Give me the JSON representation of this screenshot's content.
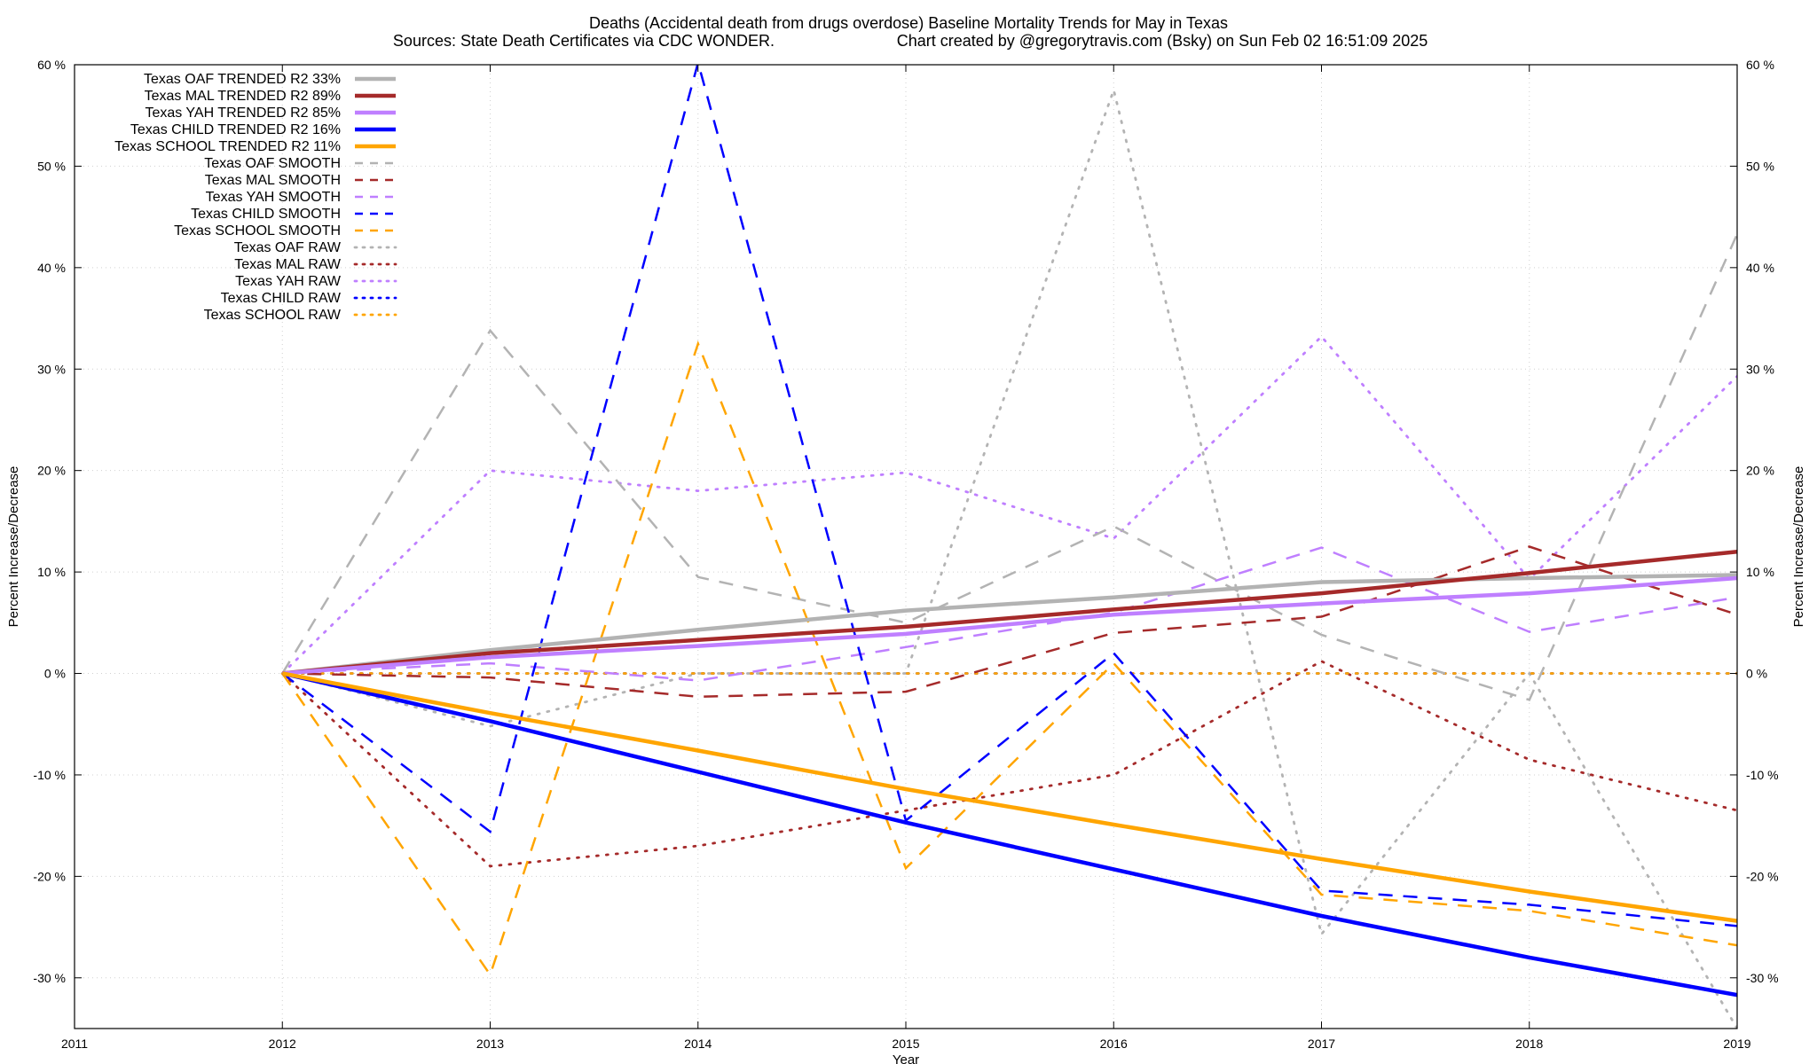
{
  "chart_data": {
    "type": "line",
    "title_line1": "Deaths (Accidental death from drugs overdose)  Baseline Mortality Trends for May in Texas",
    "title_line2_left": "Sources: State Death Certificates via CDC WONDER.",
    "title_line2_right": "Chart created by @gregorytravis.com (Bsky) on Sun Feb 02 16:51:09 2025",
    "xlabel": "Year",
    "ylabel_left": "Percent Increase/Decrease",
    "ylabel_right": "Percent Increase/Decrease",
    "xlim": [
      2011,
      2019
    ],
    "ylim": [
      -35,
      60
    ],
    "x_ticks": [
      2011,
      2012,
      2013,
      2014,
      2015,
      2016,
      2017,
      2018,
      2019
    ],
    "x_tick_labels": [
      "2011",
      "2012",
      "2013",
      "2014",
      "2015",
      "2016",
      "2017",
      "2018",
      "2019"
    ],
    "y_ticks": [
      -30,
      -20,
      -10,
      0,
      10,
      20,
      30,
      40,
      50,
      60
    ],
    "y_tick_labels": [
      "-30 %",
      "-20 %",
      "-10 %",
      "0 %",
      "10 %",
      "20 %",
      "30 %",
      "40 %",
      "50 %",
      "60 %"
    ],
    "grid": true,
    "legend_position": "top-left",
    "colors": {
      "oaf": "#b3b3b3",
      "mal": "#a52a2a",
      "yah": "#bf7fff",
      "child": "#0000ff",
      "school": "#ffa500"
    },
    "series": [
      {
        "name": "Texas OAF TRENDED R2  33%",
        "group": "oaf",
        "style": "solid",
        "x": [
          2012,
          2013,
          2014,
          2015,
          2016,
          2017,
          2018,
          2019
        ],
        "values": [
          0,
          2.3,
          4.3,
          6.2,
          7.5,
          9.0,
          9.4,
          9.7
        ]
      },
      {
        "name": "Texas MAL TRENDED R2  89%",
        "group": "mal",
        "style": "solid",
        "x": [
          2012,
          2013,
          2014,
          2015,
          2016,
          2017,
          2018,
          2019
        ],
        "values": [
          0,
          2.0,
          3.3,
          4.6,
          6.3,
          7.9,
          9.9,
          12.0
        ]
      },
      {
        "name": "Texas YAH TRENDED R2  85%",
        "group": "yah",
        "style": "solid",
        "x": [
          2012,
          2013,
          2014,
          2015,
          2016,
          2017,
          2018,
          2019
        ],
        "values": [
          0,
          1.6,
          2.7,
          3.9,
          5.8,
          6.9,
          7.9,
          9.4
        ]
      },
      {
        "name": "Texas CHILD TRENDED R2  16%",
        "group": "child",
        "style": "solid",
        "x": [
          2012,
          2013,
          2014,
          2015,
          2016,
          2017,
          2018,
          2019
        ],
        "values": [
          0,
          -4.7,
          -9.7,
          -14.7,
          -19.3,
          -23.9,
          -28.0,
          -31.7
        ]
      },
      {
        "name": "Texas SCHOOL TRENDED R2  11%",
        "group": "school",
        "style": "solid",
        "x": [
          2012,
          2013,
          2014,
          2015,
          2016,
          2017,
          2018,
          2019
        ],
        "values": [
          0,
          -3.9,
          -7.6,
          -11.4,
          -14.9,
          -18.3,
          -21.5,
          -24.4
        ]
      },
      {
        "name": "Texas OAF SMOOTH",
        "group": "oaf",
        "style": "dashed",
        "x": [
          2012,
          2013,
          2014,
          2015,
          2016,
          2017,
          2018,
          2019
        ],
        "values": [
          0,
          33.8,
          9.5,
          5.0,
          14.5,
          3.8,
          -2.6,
          43.3
        ]
      },
      {
        "name": "Texas MAL SMOOTH",
        "group": "mal",
        "style": "dashed",
        "x": [
          2012,
          2013,
          2014,
          2015,
          2016,
          2017,
          2018,
          2019
        ],
        "values": [
          0,
          -0.4,
          -2.3,
          -1.8,
          4.0,
          5.6,
          12.5,
          5.8
        ]
      },
      {
        "name": "Texas YAH SMOOTH",
        "group": "yah",
        "style": "dashed",
        "x": [
          2012,
          2013,
          2014,
          2015,
          2016,
          2017,
          2018,
          2019
        ],
        "values": [
          0,
          1.0,
          -0.7,
          2.6,
          6.0,
          12.4,
          4.1,
          7.5
        ]
      },
      {
        "name": "Texas CHILD SMOOTH",
        "group": "child",
        "style": "dashed",
        "x": [
          2012,
          2013,
          2014,
          2015,
          2016,
          2017,
          2018,
          2019
        ],
        "values": [
          0,
          -15.6,
          60.2,
          -14.5,
          2.0,
          -21.4,
          -22.8,
          -24.9
        ]
      },
      {
        "name": "Texas SCHOOL SMOOTH",
        "group": "school",
        "style": "dashed",
        "x": [
          2012,
          2013,
          2014,
          2015,
          2016,
          2017,
          2018,
          2019
        ],
        "values": [
          0,
          -29.7,
          32.5,
          -19.2,
          1.0,
          -21.8,
          -23.4,
          -26.8
        ]
      },
      {
        "name": "Texas OAF RAW",
        "group": "oaf",
        "style": "dotted",
        "x": [
          2012,
          2013,
          2014,
          2015,
          2016,
          2017,
          2018,
          2019
        ],
        "values": [
          0,
          -5.2,
          0,
          0,
          57.5,
          -25.7,
          0,
          -35.0
        ]
      },
      {
        "name": "Texas MAL RAW",
        "group": "mal",
        "style": "dotted",
        "x": [
          2012,
          2013,
          2014,
          2015,
          2016,
          2017,
          2018,
          2019
        ],
        "values": [
          0,
          -19.0,
          -17.0,
          -13.5,
          -10.0,
          1.2,
          -8.5,
          -13.5
        ]
      },
      {
        "name": "Texas YAH RAW",
        "group": "yah",
        "style": "dotted",
        "x": [
          2012,
          2013,
          2014,
          2015,
          2016,
          2017,
          2018,
          2019
        ],
        "values": [
          0,
          20.0,
          18.0,
          19.8,
          13.3,
          33.2,
          9.3,
          29.3
        ]
      },
      {
        "name": "Texas CHILD RAW",
        "group": "child",
        "style": "dotted",
        "x": [
          2012,
          2013,
          2014,
          2015,
          2016,
          2017,
          2018,
          2019
        ],
        "values": [
          0,
          0,
          0,
          0,
          0,
          0,
          0,
          0
        ]
      },
      {
        "name": "Texas SCHOOL RAW",
        "group": "school",
        "style": "dotted",
        "x": [
          2012,
          2013,
          2014,
          2015,
          2016,
          2017,
          2018,
          2019
        ],
        "values": [
          0,
          0,
          0,
          0,
          0,
          0,
          0,
          0
        ]
      }
    ]
  }
}
